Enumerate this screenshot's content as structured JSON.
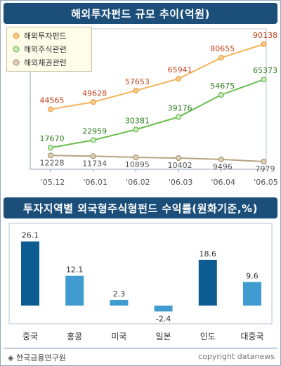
{
  "line_chart": {
    "title": "해외투자펀드 규모 추이(억원)",
    "legend": [
      "해외투자펀드",
      "해외주식관련",
      "해외채권관련"
    ]
  },
  "bar_chart": {
    "title": "투자지역별 외국형주식형펀드 수익률(원화기준,%)"
  },
  "footer": {
    "source": "◈ 한국금융연구원",
    "copyright": "copyright datanews"
  },
  "colors": {
    "fund_line": "#f5b45a",
    "stock_line": "#6bbf4e",
    "bond_line": "#b8a382",
    "fund_label": "#c0401b",
    "stock_label": "#2a7a1a",
    "bond_label": "#555555",
    "bar_dark": "#0d5c91",
    "bar_light": "#3f9bd0",
    "title_bg": "#1b4f7a"
  },
  "chart_data": [
    {
      "type": "line",
      "title": "해외투자펀드 규모 추이(억원)",
      "categories": [
        "'05.12",
        "'06.01",
        "'06.02",
        "'06.03",
        "'06.04",
        "'06.05"
      ],
      "series": [
        {
          "name": "해외투자펀드",
          "values": [
            44565,
            49628,
            57653,
            65941,
            80655,
            90138
          ]
        },
        {
          "name": "해외주식관련",
          "values": [
            17670,
            22959,
            30381,
            39176,
            54675,
            65373
          ]
        },
        {
          "name": "해외채권관련",
          "values": [
            12228,
            11734,
            10895,
            10402,
            9496,
            7979
          ]
        }
      ],
      "legend_position": "top-left",
      "grid": false
    },
    {
      "type": "bar",
      "title": "투자지역별 외국형주식형펀드 수익률(원화기준,%)",
      "categories": [
        "중국",
        "홍콩",
        "미국",
        "일본",
        "인도",
        "대중국"
      ],
      "values": [
        26.1,
        12.1,
        2.3,
        -2.4,
        18.6,
        9.6
      ],
      "highlight": [
        true,
        false,
        false,
        false,
        true,
        false
      ],
      "grid": false
    }
  ]
}
